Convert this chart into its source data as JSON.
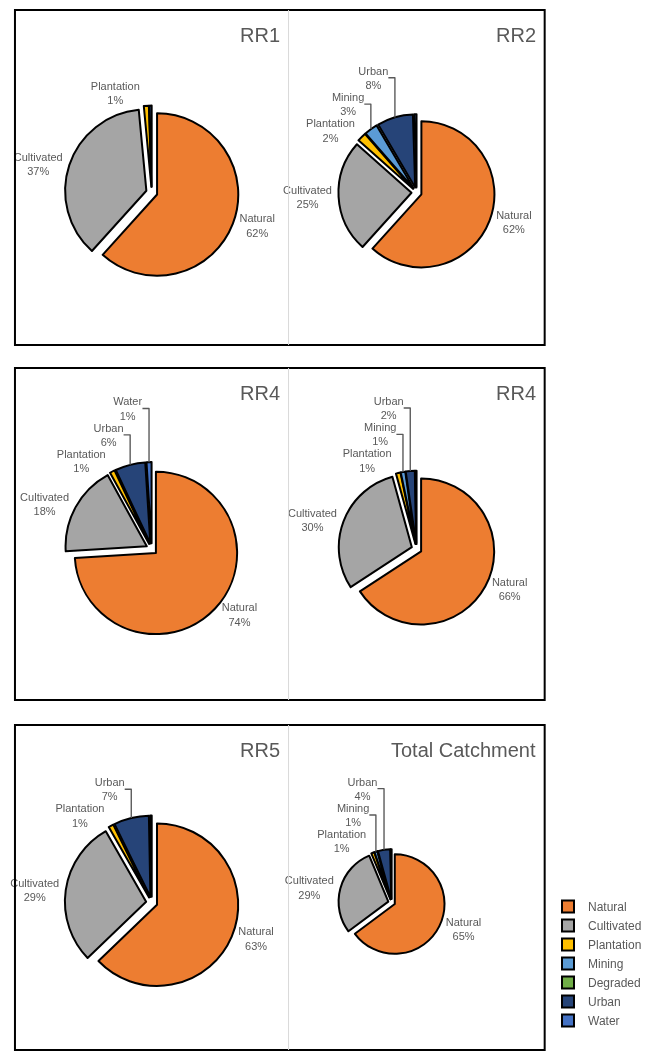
{
  "chart_data": [
    {
      "type": "pie",
      "title": "RR1",
      "categories": [
        "Natural",
        "Cultivated",
        "Plantation",
        null
      ],
      "values": [
        62,
        37,
        1,
        0.5
      ],
      "value_labels": [
        "62%",
        "37%",
        "1%",
        null
      ],
      "colors": [
        "#ed7d31",
        "#a5a5a5",
        "#ffc000",
        "#264478"
      ]
    },
    {
      "type": "pie",
      "title": "RR2",
      "categories": [
        "Natural",
        "Cultivated",
        "Plantation",
        "Mining",
        "Urban",
        null
      ],
      "values": [
        62,
        25,
        2,
        3,
        8,
        0.5
      ],
      "value_labels": [
        "62%",
        "25%",
        "2%",
        "3%",
        "8%",
        null
      ],
      "colors": [
        "#ed7d31",
        "#a5a5a5",
        "#ffc000",
        "#5b9bd5",
        "#264478",
        "#4472c4"
      ]
    },
    {
      "type": "pie",
      "title": "RR4",
      "categories": [
        "Natural",
        "Cultivated",
        "Plantation",
        "Urban",
        "Water"
      ],
      "values": [
        74,
        18,
        1,
        6,
        1
      ],
      "value_labels": [
        "74%",
        "18%",
        "1%",
        "6%",
        "1%"
      ],
      "colors": [
        "#ed7d31",
        "#a5a5a5",
        "#ffc000",
        "#264478",
        "#4472c4"
      ]
    },
    {
      "type": "pie",
      "title": "RR4",
      "categories": [
        "Natural",
        "Cultivated",
        "Plantation",
        "Mining",
        "Urban",
        null
      ],
      "values": [
        66,
        30,
        1,
        1,
        2,
        0.3
      ],
      "value_labels": [
        "66%",
        "30%",
        "1%",
        "1%",
        "2%",
        null
      ],
      "colors": [
        "#ed7d31",
        "#a5a5a5",
        "#ffc000",
        "#5b9bd5",
        "#264478",
        "#4472c4"
      ]
    },
    {
      "type": "pie",
      "title": "RR5",
      "categories": [
        "Natural",
        "Cultivated",
        "Plantation",
        "Urban",
        null
      ],
      "values": [
        63,
        29,
        1,
        7,
        0.3
      ],
      "value_labels": [
        "63%",
        "29%",
        "1%",
        "7%",
        null
      ],
      "colors": [
        "#ed7d31",
        "#a5a5a5",
        "#ffc000",
        "#264478",
        "#4472c4"
      ]
    },
    {
      "type": "pie",
      "title": "Total Catchment",
      "categories": [
        "Natural",
        "Cultivated",
        "Plantation",
        "Mining",
        "Degraded",
        "Urban",
        "Water"
      ],
      "values": [
        65,
        29,
        1,
        1,
        0,
        4,
        0.3
      ],
      "value_labels": [
        "65%",
        "29%",
        "1%",
        "1%",
        null,
        "4%",
        null
      ],
      "colors": [
        "#ed7d31",
        "#a5a5a5",
        "#ffc000",
        "#5b9bd5",
        "#70ad47",
        "#264478",
        "#4472c4"
      ],
      "legend": "bottom"
    }
  ]
}
